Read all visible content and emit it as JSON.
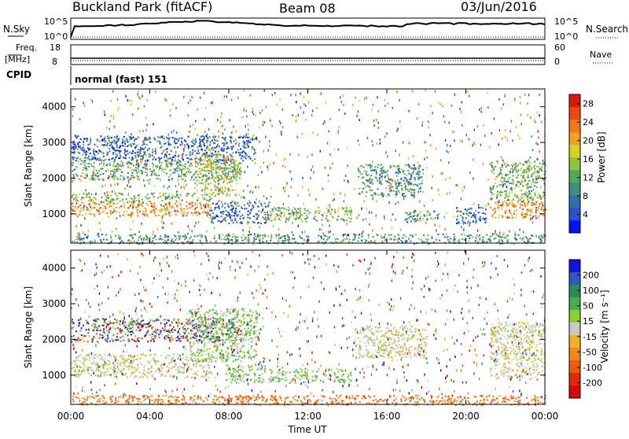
{
  "header": {
    "title": "Buckland Park (fitACF)",
    "beam": "Beam 08",
    "date": "03/Jun/2016"
  },
  "status_panels": {
    "nsky": {
      "label": "N.Sky",
      "ticks": [
        "10^5",
        "10^0"
      ]
    },
    "nsearch": {
      "label": "N.Search",
      "ticks": [
        "10^5",
        "10^0"
      ]
    },
    "freq": {
      "label": "Freq.",
      "unit": "[MHz]",
      "ticks": [
        "18",
        "8"
      ]
    },
    "nave": {
      "label": "Nave",
      "ticks": [
        "60",
        "0"
      ]
    },
    "cpid": {
      "label": "CPID",
      "value": "normal (fast) 151"
    }
  },
  "chart_data": [
    {
      "type": "heatmap",
      "name": "power",
      "ylabel": "Slant Range [km]",
      "xlabel": "Time UT",
      "x_ticks": [
        "00:00",
        "04:00",
        "08:00",
        "12:00",
        "16:00",
        "20:00",
        "00:00"
      ],
      "x_range_hours": [
        0,
        24
      ],
      "y_ticks": [
        1000,
        2000,
        3000,
        4000
      ],
      "ylim": [
        180,
        4500
      ],
      "colorbar": {
        "label": "Power [dB]",
        "ticks": [
          4,
          8,
          12,
          16,
          20,
          24,
          28
        ],
        "range": [
          0,
          30
        ],
        "colors": [
          "#0014ff",
          "#2a4fd0",
          "#2f6ea8",
          "#3b8f7c",
          "#4faa5a",
          "#8cc63c",
          "#d2d22a",
          "#f0a020",
          "#f07a18",
          "#e84a10",
          "#dd1a0a"
        ]
      },
      "echo_regions": [
        {
          "t0": 0.0,
          "t1": 7.1,
          "r0": 950,
          "r1": 1350,
          "level": 22
        },
        {
          "t0": 0.0,
          "t1": 7.1,
          "r0": 1350,
          "r1": 1600,
          "level": 14
        },
        {
          "t0": 0.0,
          "t1": 8.6,
          "r0": 1950,
          "r1": 2500,
          "level": 11
        },
        {
          "t0": 0.0,
          "t1": 9.4,
          "r0": 2500,
          "r1": 3200,
          "level": 6
        },
        {
          "t0": 6.2,
          "t1": 8.4,
          "r0": 1500,
          "r1": 2700,
          "level": 17
        },
        {
          "t0": 7.0,
          "t1": 10.0,
          "r0": 750,
          "r1": 1350,
          "level": 6
        },
        {
          "t0": 10.0,
          "t1": 14.2,
          "r0": 800,
          "r1": 1200,
          "level": 13
        },
        {
          "t0": 14.5,
          "t1": 17.8,
          "r0": 1500,
          "r1": 2400,
          "level": 10
        },
        {
          "t0": 16.8,
          "t1": 18.6,
          "r0": 800,
          "r1": 1100,
          "level": 12
        },
        {
          "t0": 19.5,
          "t1": 21.0,
          "r0": 750,
          "r1": 1200,
          "level": 6
        },
        {
          "t0": 21.2,
          "t1": 24.0,
          "r0": 900,
          "r1": 1400,
          "level": 22
        },
        {
          "t0": 21.2,
          "t1": 24.0,
          "r0": 1400,
          "r1": 2500,
          "level": 13
        },
        {
          "t0": 0.0,
          "t1": 24.0,
          "r0": 180,
          "r1": 450,
          "level": 10
        }
      ]
    },
    {
      "type": "heatmap",
      "name": "velocity",
      "ylabel": "Slant Range [km]",
      "xlabel": "Time UT",
      "x_ticks": [
        "00:00",
        "04:00",
        "08:00",
        "12:00",
        "16:00",
        "20:00",
        "00:00"
      ],
      "x_range_hours": [
        0,
        24
      ],
      "y_ticks": [
        1000,
        2000,
        3000,
        4000
      ],
      "ylim": [
        180,
        4500
      ],
      "colorbar": {
        "label": "Velocity [m s⁻¹]",
        "ticks": [
          200,
          100,
          50,
          15,
          -15,
          -50,
          -100,
          -200
        ],
        "colors": [
          "#1414d8",
          "#2e58c0",
          "#2e8a5a",
          "#44b04a",
          "#8cd038",
          "#c8c8c8",
          "#f0b028",
          "#f08a18",
          "#f05a10",
          "#e02a0c",
          "#d80808"
        ]
      },
      "echo_regions": [
        {
          "t0": 0.0,
          "t1": 7.1,
          "r0": 950,
          "r1": 1600,
          "level": 0
        },
        {
          "t0": 0.0,
          "t1": 8.6,
          "r0": 1950,
          "r1": 2600,
          "level": 60
        },
        {
          "t0": 6.0,
          "t1": 9.4,
          "r0": 1400,
          "r1": 2900,
          "level": 30
        },
        {
          "t0": 7.8,
          "t1": 9.8,
          "r0": 800,
          "r1": 1300,
          "level": 30
        },
        {
          "t0": 10.0,
          "t1": 14.2,
          "r0": 800,
          "r1": 1200,
          "level": 30
        },
        {
          "t0": 14.5,
          "t1": 18.0,
          "r0": 1500,
          "r1": 2400,
          "level": 0
        },
        {
          "t0": 21.2,
          "t1": 24.0,
          "r0": 900,
          "r1": 2500,
          "level": 0
        },
        {
          "t0": 0.0,
          "t1": 24.0,
          "r0": 180,
          "r1": 450,
          "level": -80
        }
      ]
    }
  ]
}
